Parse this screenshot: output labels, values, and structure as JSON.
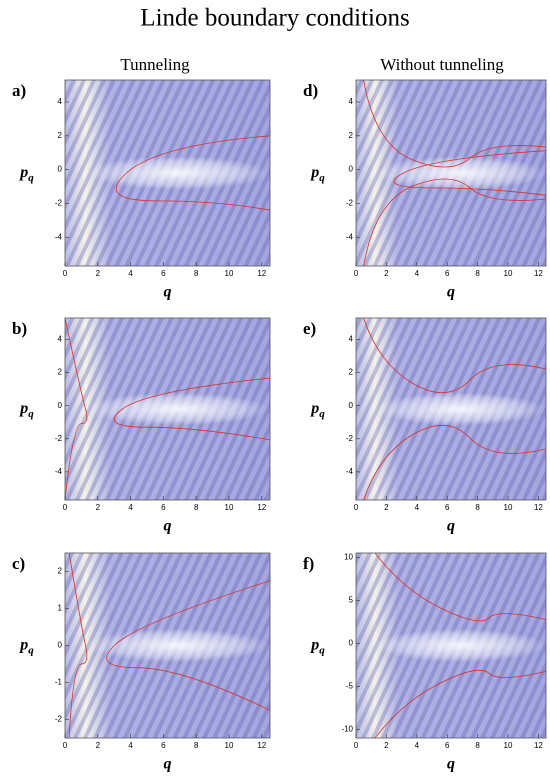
{
  "title": "Linde boundary conditions",
  "columns": [
    "Tunneling",
    "Without tunneling"
  ],
  "panels": [
    {
      "label": "a)",
      "xlabel": "q",
      "ylabel": "p",
      "ylabel_sub": "q",
      "xlim": [
        0,
        12.5
      ],
      "xticks": [
        0,
        2,
        4,
        6,
        8,
        10,
        12
      ],
      "ylim": [
        -5.7,
        5.3
      ],
      "yticks": [
        -4,
        -2,
        0,
        2,
        4
      ]
    },
    {
      "label": "b)",
      "xlabel": "q",
      "ylabel": "p",
      "ylabel_sub": "q",
      "xlim": [
        0,
        12.5
      ],
      "xticks": [
        0,
        2,
        4,
        6,
        8,
        10,
        12
      ],
      "ylim": [
        -5.7,
        5.3
      ],
      "yticks": [
        -4,
        -2,
        0,
        2,
        4
      ]
    },
    {
      "label": "c)",
      "xlabel": "q",
      "ylabel": "p",
      "ylabel_sub": "q",
      "xlim": [
        0,
        12.5
      ],
      "xticks": [
        0,
        2,
        4,
        6,
        8,
        10,
        12
      ],
      "ylim": [
        -2.5,
        2.5
      ],
      "yticks": [
        -2,
        -1,
        0,
        1,
        2
      ]
    },
    {
      "label": "d)",
      "xlabel": "q",
      "ylabel": "p",
      "ylabel_sub": "q",
      "xlim": [
        0,
        12.5
      ],
      "xticks": [
        0,
        2,
        4,
        6,
        8,
        10,
        12
      ],
      "ylim": [
        -5.7,
        5.3
      ],
      "yticks": [
        -4,
        -2,
        0,
        2,
        4
      ]
    },
    {
      "label": "e)",
      "xlabel": "q",
      "ylabel": "p",
      "ylabel_sub": "q",
      "xlim": [
        0,
        12.5
      ],
      "xticks": [
        0,
        2,
        4,
        6,
        8,
        10,
        12
      ],
      "ylim": [
        -5.7,
        5.3
      ],
      "yticks": [
        -4,
        -2,
        0,
        2,
        4
      ]
    },
    {
      "label": "f)",
      "xlabel": "q",
      "ylabel": "p",
      "ylabel_sub": "q",
      "xlim": [
        0,
        12.5
      ],
      "xticks": [
        0,
        2,
        4,
        6,
        8,
        10,
        12
      ],
      "ylim": [
        -11,
        10.5
      ],
      "yticks": [
        -10,
        -5,
        0,
        5,
        10
      ]
    }
  ]
}
